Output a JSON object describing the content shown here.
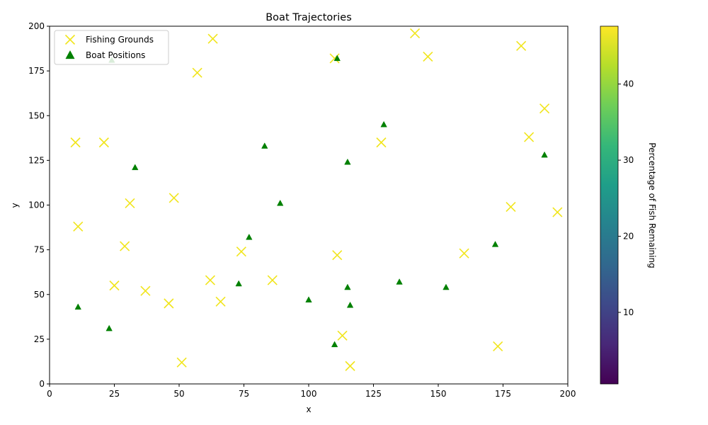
{
  "chart_data": {
    "type": "scatter",
    "title": "Boat Trajectories",
    "xlabel": "x",
    "ylabel": "y",
    "xlim": [
      0,
      200
    ],
    "ylim": [
      0,
      200
    ],
    "xticks": [
      0,
      25,
      50,
      75,
      100,
      125,
      150,
      175,
      200
    ],
    "yticks": [
      0,
      25,
      50,
      75,
      100,
      125,
      150,
      175,
      200
    ],
    "grid": false,
    "legend_position": "upper-left",
    "series": [
      {
        "name": "Fishing Grounds",
        "marker": "x",
        "color": "#f1e51d",
        "points": [
          [
            10,
            135
          ],
          [
            21,
            135
          ],
          [
            11,
            88
          ],
          [
            29,
            77
          ],
          [
            31,
            101
          ],
          [
            25,
            55
          ],
          [
            37,
            52
          ],
          [
            46,
            45
          ],
          [
            48,
            104
          ],
          [
            51,
            12
          ],
          [
            57,
            174
          ],
          [
            63,
            193
          ],
          [
            62,
            58
          ],
          [
            66,
            46
          ],
          [
            74,
            74
          ],
          [
            86,
            58
          ],
          [
            110,
            182
          ],
          [
            111,
            72
          ],
          [
            113,
            27
          ],
          [
            116,
            10
          ],
          [
            128,
            135
          ],
          [
            141,
            196
          ],
          [
            146,
            183
          ],
          [
            160,
            73
          ],
          [
            173,
            21
          ],
          [
            178,
            99
          ],
          [
            182,
            189
          ],
          [
            185,
            138
          ],
          [
            191,
            154
          ],
          [
            196,
            96
          ]
        ]
      },
      {
        "name": "Boat Positions",
        "marker": "triangle",
        "color": "#008000",
        "points": [
          [
            11,
            43
          ],
          [
            23,
            31
          ],
          [
            24,
            181
          ],
          [
            33,
            121
          ],
          [
            73,
            56
          ],
          [
            77,
            82
          ],
          [
            83,
            133
          ],
          [
            89,
            101
          ],
          [
            100,
            47
          ],
          [
            110,
            22
          ],
          [
            111,
            182
          ],
          [
            115,
            124
          ],
          [
            115,
            54
          ],
          [
            116,
            44
          ],
          [
            129,
            145
          ],
          [
            135,
            57
          ],
          [
            153,
            54
          ],
          [
            172,
            78
          ],
          [
            191,
            128
          ]
        ]
      }
    ],
    "colorbar": {
      "label": "Percentage of Fish Remaining",
      "min": 0.6,
      "max": 47.6,
      "ticks": [
        10,
        20,
        30,
        40
      ],
      "colormap": "viridis",
      "stops": [
        "#440154",
        "#482878",
        "#3e4989",
        "#31688e",
        "#26828e",
        "#1f9e89",
        "#35b779",
        "#6ece58",
        "#b5de2b",
        "#fde725"
      ]
    }
  }
}
